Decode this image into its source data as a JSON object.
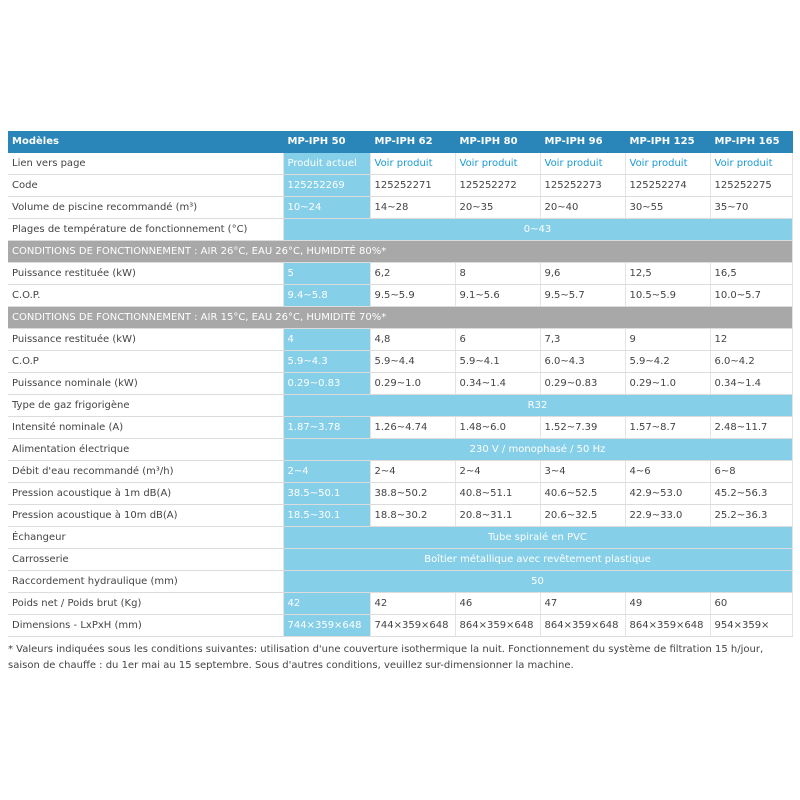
{
  "table": {
    "header": [
      "Modèles",
      "MP-IPH 50",
      "MP-IPH 62",
      "MP-IPH 80",
      "MP-IPH 96",
      "MP-IPH 125",
      "MP-IPH 165"
    ],
    "rows": [
      [
        "Lien vers page",
        "Produit actuel",
        "Voir produit",
        "Voir produit",
        "Voir produit",
        "Voir produit",
        "Voir produit"
      ],
      [
        "Code",
        "125252269",
        "125252271",
        "125252272",
        "125252273",
        "125252274",
        "125252275"
      ],
      [
        "Volume de piscine recommandé (m³)",
        "10~24",
        "14~28",
        "20~35",
        "20~40",
        "30~55",
        "35~70"
      ],
      [
        "Plages de température de fonctionnement (°C)",
        "0~43"
      ],
      [
        "CONDITIONS DE FONCTIONNEMENT : AIR 26°C, EAU 26°C, HUMIDITÉ 80%*"
      ],
      [
        "Puissance restituée (kW)",
        "5",
        "6,2",
        "8",
        "9,6",
        "12,5",
        "16,5"
      ],
      [
        "C.O.P.",
        "9.4~5.8",
        "9.5~5.9",
        "9.1~5.6",
        "9.5~5.7",
        "10.5~5.9",
        "10.0~5.7"
      ],
      [
        "CONDITIONS DE FONCTIONNEMENT : AIR 15°C, EAU 26°C, HUMIDITÉ 70%*"
      ],
      [
        "Puissance restituée (kW)",
        "4",
        "4,8",
        "6",
        "7,3",
        "9",
        "12"
      ],
      [
        "C.O.P",
        "5.9~4.3",
        "5.9~4.4",
        "5.9~4.1",
        "6.0~4.3",
        "5.9~4.2",
        "6.0~4.2"
      ],
      [
        "Puissance nominale (kW)",
        "0.29~0.83",
        "0.29~1.0",
        "0.34~1.4",
        "0.29~0.83",
        "0.29~1.0",
        "0.34~1.4"
      ],
      [
        "Type de gaz frigorigène",
        "R32"
      ],
      [
        "Intensité nominale (A)",
        "1.87~3.78",
        "1.26~4.74",
        "1.48~6.0",
        "1.52~7.39",
        "1.57~8.7",
        "2.48~11.7"
      ],
      [
        "Alimentation électrique",
        "230 V / monophasé / 50 Hz"
      ],
      [
        "Débit d'eau recommandé (m³/h)",
        "2~4",
        "2~4",
        "2~4",
        "3~4",
        "4~6",
        "6~8"
      ],
      [
        "Pression acoustique à 1m dB(A)",
        "38.5~50.1",
        "38.8~50.2",
        "40.8~51.1",
        "40.6~52.5",
        "42.9~53.0",
        "45.2~56.3"
      ],
      [
        "Pression acoustique à 10m dB(A)",
        "18.5~30.1",
        "18.8~30.2",
        "20.8~31.1",
        "20.6~32.5",
        "22.9~33.0",
        "25.2~36.3"
      ],
      [
        "Échangeur",
        "Tube spiralé en PVC"
      ],
      [
        "Carrosserie",
        "Boîtier métallique avec revêtement plastique"
      ],
      [
        "Raccordement hydraulique (mm)",
        "50"
      ],
      [
        "Poids net / Poids brut (Kg)",
        "42",
        "42",
        "46",
        "47",
        "49",
        "60"
      ],
      [
        "Dimensions - LxPxH (mm)",
        "744×359×648",
        "744×359×648",
        "864×359×648",
        "864×359×648",
        "864×359×648",
        "954×359×"
      ]
    ]
  },
  "footnote": "* Valeurs indiquées sous les conditions suivantes: utilisation d'une couverture isothermique la nuit. Fonctionnement du système de filtration 15 h/jour, saison de chauffe : du 1er mai au 15 septembre. Sous d'autres conditions, veuillez sur-dimensionner la machine."
}
